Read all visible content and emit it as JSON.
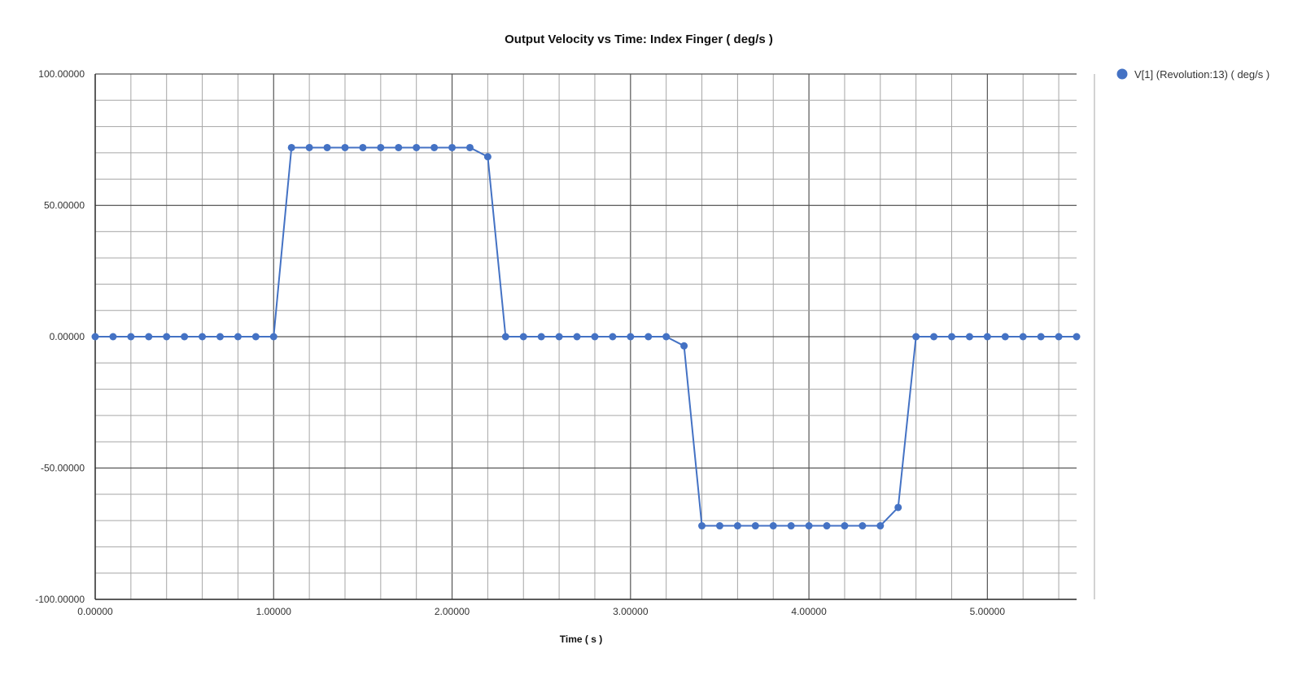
{
  "chart_data": {
    "type": "line",
    "title": "Output Velocity vs Time: Index Finger ( deg/s )",
    "xlabel": "Time ( s )",
    "ylabel": "",
    "xlim": [
      0,
      5.5
    ],
    "ylim": [
      -100,
      100
    ],
    "x_major_ticks": [
      0,
      1,
      2,
      3,
      4,
      5
    ],
    "x_tick_labels": [
      "0.00000",
      "1.00000",
      "2.00000",
      "3.00000",
      "4.00000",
      "5.00000"
    ],
    "x_minor_step": 0.2,
    "y_major_ticks": [
      -100,
      -50,
      0,
      50,
      100
    ],
    "y_tick_labels": [
      "-100.00000",
      "-50.00000",
      "0.00000",
      "50.00000",
      "100.00000"
    ],
    "y_minor_step": 10,
    "grid": true,
    "legend_position": "top-right",
    "series": [
      {
        "name": "V[1] (Revolution:13) ( deg/s )",
        "color": "#4472c4",
        "marker": "circle",
        "x": [
          0.0,
          0.1,
          0.2,
          0.3,
          0.4,
          0.5,
          0.6,
          0.7,
          0.8,
          0.9,
          1.0,
          1.1,
          1.2,
          1.3,
          1.4,
          1.5,
          1.6,
          1.7,
          1.8,
          1.9,
          2.0,
          2.1,
          2.2,
          2.3,
          2.4,
          2.5,
          2.6,
          2.7,
          2.8,
          2.9,
          3.0,
          3.1,
          3.2,
          3.3,
          3.4,
          3.5,
          3.6,
          3.7,
          3.8,
          3.9,
          4.0,
          4.1,
          4.2,
          4.3,
          4.4,
          4.5,
          4.6,
          4.7,
          4.8,
          4.9,
          5.0,
          5.1,
          5.2,
          5.3,
          5.4,
          5.5
        ],
        "values": [
          0,
          0,
          0,
          0,
          0,
          0,
          0,
          0,
          0,
          0,
          0,
          72,
          72,
          72,
          72,
          72,
          72,
          72,
          72,
          72,
          72,
          72,
          68.5,
          0,
          0,
          0,
          0,
          0,
          0,
          0,
          0,
          0,
          0,
          -3.5,
          -72,
          -72,
          -72,
          -72,
          -72,
          -72,
          -72,
          -72,
          -72,
          -72,
          -72,
          -65,
          0,
          0,
          0,
          0,
          0,
          0,
          0,
          0,
          0,
          0
        ]
      }
    ]
  }
}
